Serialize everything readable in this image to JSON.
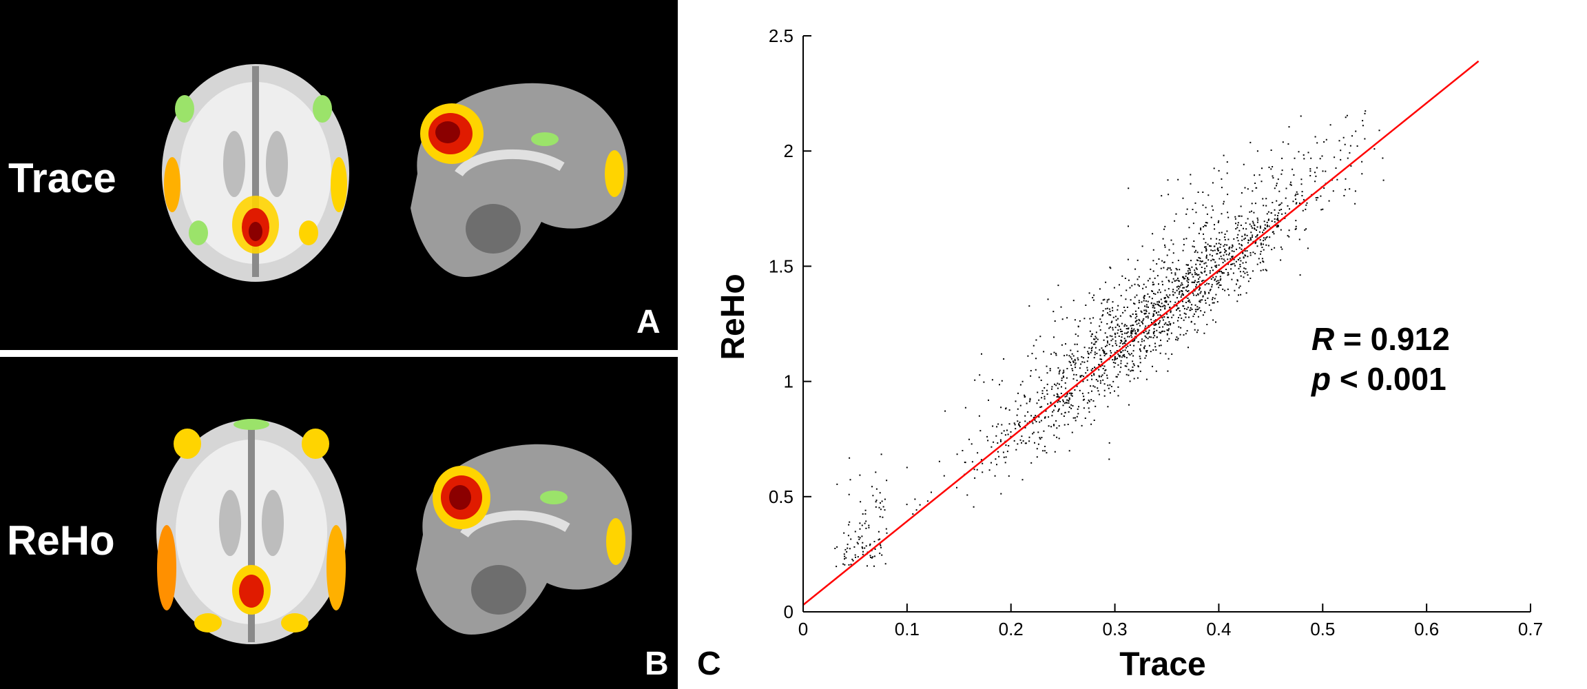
{
  "panels": {
    "a": {
      "row_label": "Trace",
      "letter": "A"
    },
    "b": {
      "row_label": "ReHo",
      "letter": "B"
    },
    "c": {
      "letter": "C"
    }
  },
  "colors": {
    "panel_background": "#000000",
    "point_color": "#000000",
    "fit_line": "#ff0000",
    "brain_tissue": "#d8d8d8",
    "activation_low": "#7fe36a",
    "activation_mid": "#ffd400",
    "activation_high": "#cc0000"
  },
  "chart_data": {
    "type": "scatter",
    "xlabel": "Trace",
    "ylabel": "ReHo",
    "xlim": [
      0,
      0.7
    ],
    "ylim": [
      0,
      2.5
    ],
    "x_ticks": [
      "0",
      "0.1",
      "0.2",
      "0.3",
      "0.4",
      "0.5",
      "0.6",
      "0.7"
    ],
    "y_ticks": [
      "0",
      "0.5",
      "1",
      "1.5",
      "2",
      "2.5"
    ],
    "x_tick_values": [
      0,
      0.1,
      0.2,
      0.3,
      0.4,
      0.5,
      0.6,
      0.7
    ],
    "y_tick_values": [
      0,
      0.5,
      1,
      1.5,
      2,
      2.5
    ],
    "grid": false,
    "fit_line": {
      "x": [
        0,
        0.65
      ],
      "y": [
        0.03,
        2.39
      ]
    },
    "stats": {
      "r_symbol": "R",
      "r_value": "= 0.912",
      "p_symbol": "p",
      "p_value": "< 0.001"
    },
    "points_summary": {
      "x_range": [
        0.03,
        0.56
      ],
      "y_range": [
        0.2,
        2.18
      ],
      "trend": "dense cloud along the fit line"
    }
  }
}
